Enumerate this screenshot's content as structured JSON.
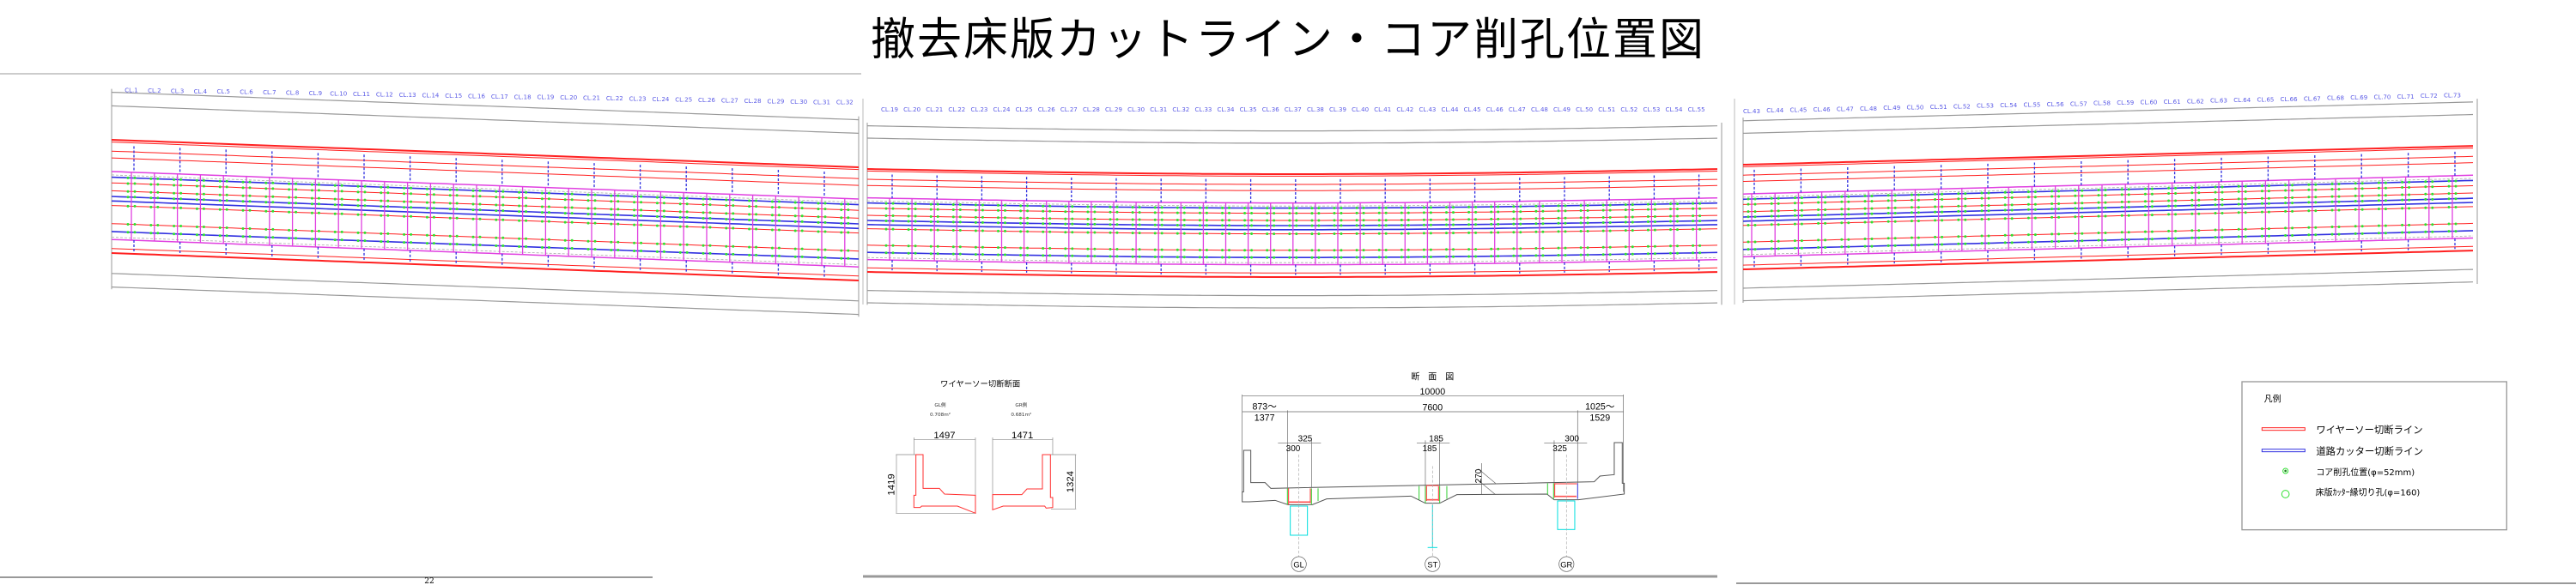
{
  "title": "撤去床版カットライン・コア削孔位置図",
  "plan": {
    "panels": [
      {
        "cl_labels": [
          "CL.1",
          "CL.2",
          "CL.3",
          "CL.4",
          "CL.5",
          "CL.6",
          "CL.7",
          "CL.8",
          "CL.9",
          "CL.10",
          "CL.11",
          "CL.12",
          "CL.13",
          "CL.14",
          "CL.15",
          "CL.16",
          "CL.17",
          "CL.18",
          "CL.19",
          "CL.20",
          "CL.21",
          "CL.22",
          "CL.23",
          "CL.24",
          "CL.25",
          "CL.26",
          "CL.27",
          "CL.28",
          "CL.29",
          "CL.30",
          "CL.31",
          "CL.32"
        ]
      },
      {
        "cl_labels": [
          "CL.19",
          "CL.20",
          "CL.21",
          "CL.22",
          "CL.23",
          "CL.24",
          "CL.25",
          "CL.26",
          "CL.27",
          "CL.28",
          "CL.29",
          "CL.30",
          "CL.31",
          "CL.32",
          "CL.33",
          "CL.34",
          "CL.35",
          "CL.36",
          "CL.37",
          "CL.38",
          "CL.39",
          "CL.40",
          "CL.41",
          "CL.42",
          "CL.43",
          "CL.44",
          "CL.45",
          "CL.46",
          "CL.47",
          "CL.48",
          "CL.49",
          "CL.50",
          "CL.51",
          "CL.52",
          "CL.53",
          "CL.54",
          "CL.55"
        ]
      },
      {
        "cl_labels": [
          "CL.43",
          "CL.44",
          "CL.45",
          "CL.46",
          "CL.47",
          "CL.48",
          "CL.49",
          "CL.50",
          "CL.51",
          "CL.52",
          "CL.53",
          "CL.54",
          "CL.55",
          "CL.56",
          "CL.57",
          "CL.58",
          "CL.59",
          "CL.60",
          "CL.61",
          "CL.62",
          "CL.63",
          "CL.64",
          "CL.65",
          "CL.66",
          "CL.67",
          "CL.68",
          "CL.69",
          "CL.70",
          "CL.71",
          "CL.72",
          "CL.73"
        ]
      }
    ],
    "colors": {
      "wire_saw": "#ff2020",
      "road_cutter": "#3030e0",
      "panel_grid": "#e040e0",
      "core": "#30e030"
    }
  },
  "wire_saw_section": {
    "title": "ワイヤーソー切断断面",
    "left": {
      "side": "GL側",
      "area": "0.708m²",
      "width": "1497",
      "height": "1419"
    },
    "right": {
      "side": "GR側",
      "area": "0.681m²",
      "width": "1471",
      "height": "1324"
    }
  },
  "cross_section": {
    "title": "断　面　図",
    "total_width": "10000",
    "girder_span": "7600",
    "left_overhang_a": "873～",
    "left_overhang_b": "1377",
    "right_overhang_a": "1025～",
    "right_overhang_b": "1529",
    "gl_dims": [
      "325",
      "300"
    ],
    "st_dims": [
      "185",
      "185"
    ],
    "gr_dims": [
      "300",
      "325"
    ],
    "slab_thickness": "270",
    "girders": [
      "GL",
      "ST",
      "GR"
    ]
  },
  "legend": {
    "title": "凡例",
    "items": [
      {
        "label": "ワイヤーソー切断ライン",
        "symbol": "red-line",
        "color": "#ff2020"
      },
      {
        "label": "道路カッター切断ライン",
        "symbol": "blue-line",
        "color": "#3030e0"
      },
      {
        "label": "コア削孔位置(φ=52mm)",
        "symbol": "green-dot",
        "color": "#30e030"
      },
      {
        "label": "床版ｶｯﾀｰ縁切り孔(φ=160)",
        "symbol": "green-circle",
        "color": "#30e030"
      }
    ]
  },
  "page_number": "22"
}
